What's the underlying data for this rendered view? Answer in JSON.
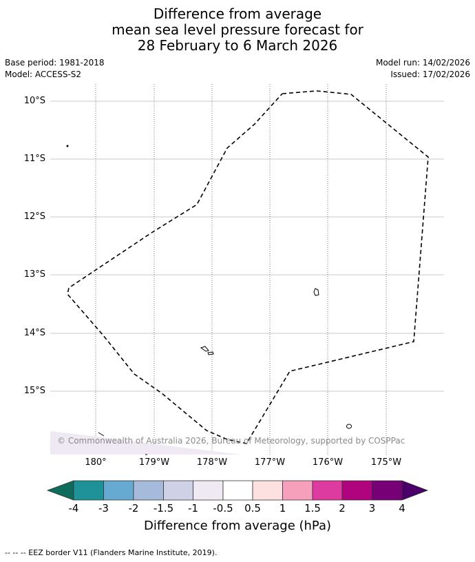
{
  "title": {
    "line1": "Difference from average",
    "line2": "mean sea level pressure forecast for",
    "line3": "28 February to 6 March 2026"
  },
  "meta": {
    "base_period": "Base period: 1981-2018",
    "model": "Model: ACCESS-S2",
    "model_run": "Model run: 14/02/2026",
    "issued": "Issued: 17/02/2026"
  },
  "map": {
    "lat_labels": [
      "10°S",
      "11°S",
      "12°S",
      "13°S",
      "14°S",
      "15°S"
    ],
    "lon_labels": [
      "180°",
      "179°W",
      "178°W",
      "177°W",
      "176°W",
      "175°W"
    ],
    "copyright": "© Commonwealth of Australia 2026, Bureau of Meteorology, supported by COSPPac"
  },
  "colorbar": {
    "labels": [
      "-4",
      "-3",
      "-2",
      "-1.5",
      "-1",
      "-0.5",
      "0.5",
      "1",
      "1.5",
      "2",
      "3",
      "4"
    ],
    "colors": [
      "#0f6b5c",
      "#1e9296",
      "#66aad2",
      "#a6bbdc",
      "#cfd1e6",
      "#efe9f3",
      "#ffffff",
      "#fde0e0",
      "#f7a0bc",
      "#de3ba0",
      "#b0047e",
      "#780076",
      "#4a0068"
    ],
    "title": "Difference from average (hPa)"
  },
  "footer": "--  --  -- EEZ border V11 (Flanders Marine Institute, 2019)."
}
